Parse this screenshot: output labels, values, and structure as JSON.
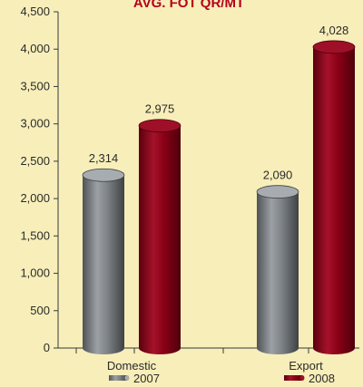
{
  "chart_data": {
    "type": "bar",
    "title": "AVG. FOT QR/MT",
    "categories": [
      "Domestic",
      "Export"
    ],
    "series": [
      {
        "name": "2007",
        "values": [
          2314,
          2090
        ],
        "labels": [
          "2,314",
          "2,090"
        ],
        "color": "#7d8286"
      },
      {
        "name": "2008",
        "values": [
          2975,
          4028
        ],
        "labels": [
          "2,975",
          "4,028"
        ],
        "color": "#8a0016"
      }
    ],
    "ylim": [
      0,
      4500
    ],
    "yticks": [
      0,
      500,
      1000,
      1500,
      2000,
      2500,
      3000,
      3500,
      4000,
      4500
    ],
    "ytick_labels": [
      "0",
      "500",
      "1,000",
      "1,500",
      "2,000",
      "2,500",
      "3,000",
      "3,500",
      "4,000",
      "4,500"
    ],
    "grid": false,
    "legend_position": "bottom",
    "style": "3d-cylinder"
  },
  "colors": {
    "background": "#f7eeb9",
    "title": "#b3001b",
    "axis": "#3a3a3a"
  }
}
